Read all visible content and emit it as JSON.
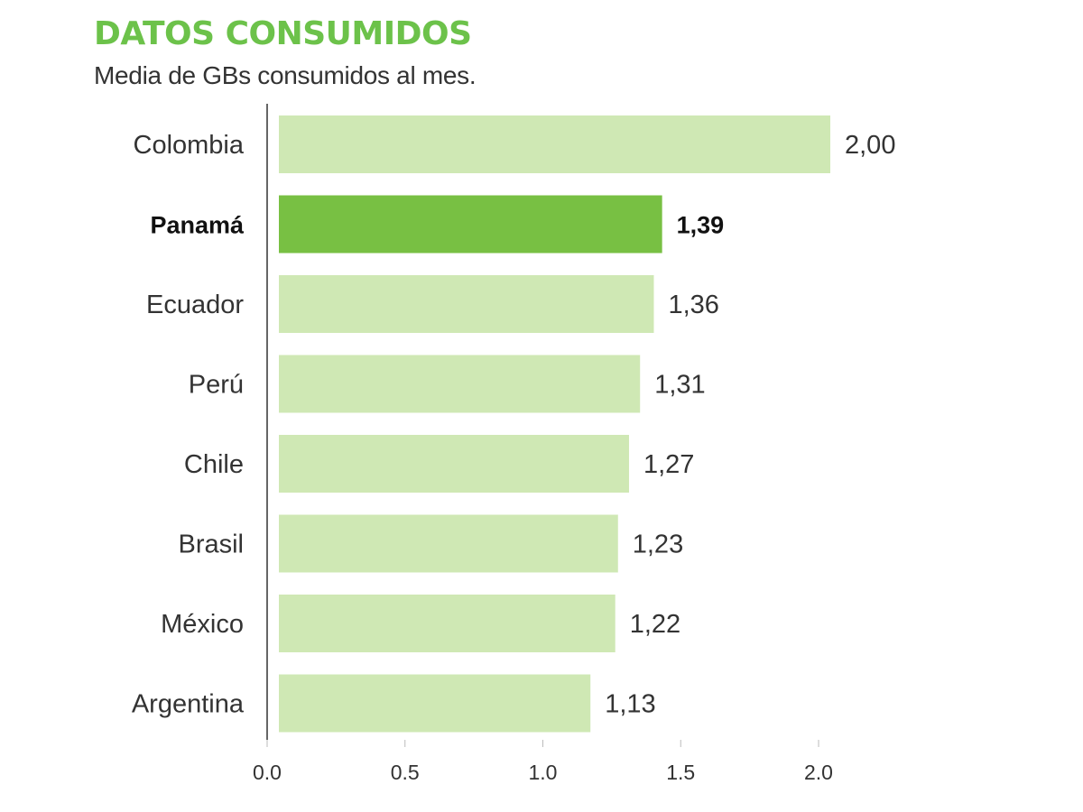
{
  "colors": {
    "accent": "#6cc24a",
    "bar": "#cfe8b4",
    "bar_highlight": "#78c043",
    "text": "#333333",
    "highlight_text": "#111111",
    "axis": "#666666"
  },
  "header": {
    "title": "DATOS CONSUMIDOS",
    "subtitle": "Media de GBs consumidos al mes."
  },
  "chart_data": {
    "type": "bar",
    "orientation": "horizontal",
    "title": "DATOS CONSUMIDOS",
    "subtitle": "Media de GBs consumidos al mes.",
    "xlabel": "",
    "ylabel": "",
    "xlim": [
      0,
      2.0
    ],
    "categories": [
      "Colombia",
      "Panamá",
      "Ecuador",
      "Perú",
      "Chile",
      "Brasil",
      "México",
      "Argentina"
    ],
    "values": [
      2.0,
      1.39,
      1.36,
      1.31,
      1.27,
      1.23,
      1.22,
      1.13
    ],
    "value_labels": [
      "2,00",
      "1,39",
      "1,36",
      "1,31",
      "1,27",
      "1,23",
      "1,22",
      "1,13"
    ],
    "highlight": "Panamá",
    "x_ticks": [
      0.0,
      0.5,
      1.0,
      1.5,
      2.0
    ],
    "x_tick_labels": [
      "0.0",
      "0.5",
      "1.0",
      "1.5",
      "2.0"
    ],
    "grid": false,
    "legend": "none"
  }
}
